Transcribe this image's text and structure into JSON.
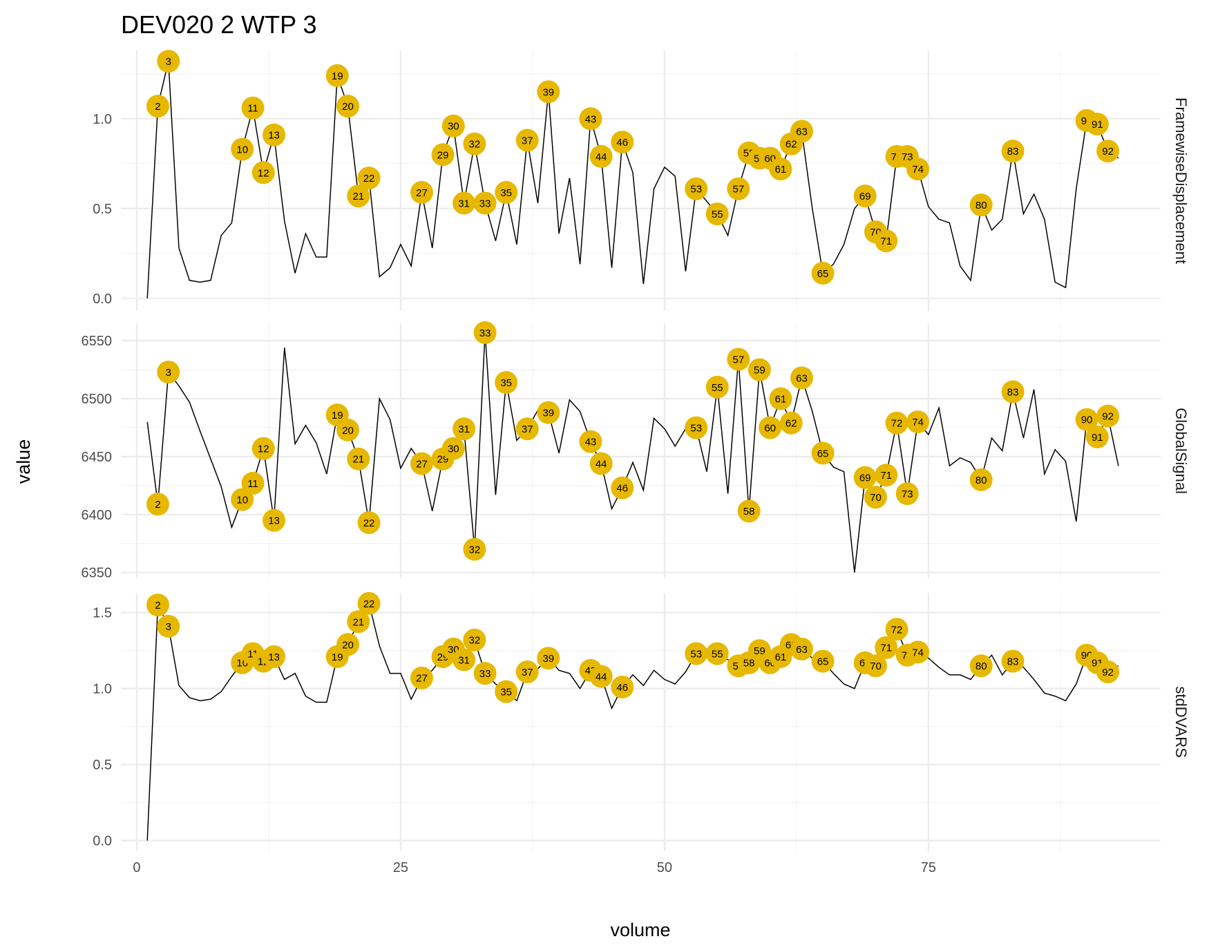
{
  "chart_data": {
    "type": "line",
    "title": "DEV020  2  WTP  3",
    "xlabel": "volume",
    "ylabel": "value",
    "xlim": [
      -1.5,
      97
    ],
    "x_ticks": [
      0,
      25,
      50,
      75
    ],
    "grid": true,
    "highlight_color": "#E7B800",
    "line_color": "#000000",
    "panels": [
      {
        "name": "FramewiseDisplacement",
        "ylim": [
          -0.07,
          1.38
        ],
        "y_ticks": [
          0.0,
          0.5,
          1.0
        ],
        "y_tick_labels": [
          "0.0",
          "0.5",
          "1.0"
        ],
        "x": [
          1,
          2,
          3,
          4,
          5,
          6,
          7,
          8,
          9,
          10,
          11,
          12,
          13,
          14,
          15,
          16,
          17,
          18,
          19,
          20,
          21,
          22,
          23,
          24,
          25,
          26,
          27,
          28,
          29,
          30,
          31,
          32,
          33,
          34,
          35,
          36,
          37,
          38,
          39,
          40,
          41,
          42,
          43,
          44,
          45,
          46,
          47,
          48,
          49,
          50,
          51,
          52,
          53,
          54,
          55,
          56,
          57,
          58,
          59,
          60,
          61,
          62,
          63,
          64,
          65,
          66,
          67,
          68,
          69,
          70,
          71,
          72,
          73,
          74,
          75,
          76,
          77,
          78,
          79,
          80,
          81,
          82,
          83,
          84,
          85,
          86,
          87,
          88,
          89,
          90,
          91,
          92,
          93
        ],
        "values": [
          0.0,
          1.07,
          1.32,
          0.28,
          0.1,
          0.09,
          0.1,
          0.35,
          0.42,
          0.83,
          1.06,
          0.7,
          0.91,
          0.43,
          0.14,
          0.36,
          0.23,
          0.23,
          1.24,
          1.07,
          0.57,
          0.67,
          0.12,
          0.17,
          0.3,
          0.18,
          0.59,
          0.28,
          0.8,
          0.96,
          0.53,
          0.86,
          0.53,
          0.32,
          0.59,
          0.3,
          0.88,
          0.53,
          1.15,
          0.36,
          0.67,
          0.19,
          1.0,
          0.79,
          0.17,
          0.87,
          0.7,
          0.08,
          0.61,
          0.73,
          0.68,
          0.15,
          0.61,
          0.54,
          0.47,
          0.35,
          0.61,
          0.81,
          0.78,
          0.78,
          0.72,
          0.86,
          0.93,
          0.5,
          0.14,
          0.19,
          0.3,
          0.5,
          0.57,
          0.37,
          0.32,
          0.79,
          0.79,
          0.72,
          0.51,
          0.44,
          0.42,
          0.18,
          0.1,
          0.52,
          0.38,
          0.44,
          0.82,
          0.47,
          0.58,
          0.44,
          0.09,
          0.06,
          0.61,
          0.99,
          0.97,
          0.82,
          0.78
        ],
        "highlight_labels": [
          2,
          3,
          10,
          11,
          12,
          13,
          19,
          20,
          21,
          22,
          27,
          29,
          30,
          31,
          32,
          33,
          35,
          37,
          39,
          43,
          44,
          46,
          53,
          55,
          57,
          58,
          59,
          60,
          61,
          62,
          63,
          65,
          69,
          70,
          71,
          72,
          73,
          74,
          80,
          83,
          90,
          91,
          92
        ]
      },
      {
        "name": "GlobalSignal",
        "ylim": [
          6345,
          6565
        ],
        "y_ticks": [
          6350,
          6400,
          6450,
          6500,
          6550
        ],
        "y_tick_labels": [
          "6350",
          "6400",
          "6450",
          "6500",
          "6550"
        ],
        "x": [
          1,
          2,
          3,
          4,
          5,
          6,
          7,
          8,
          9,
          10,
          11,
          12,
          13,
          14,
          15,
          16,
          17,
          18,
          19,
          20,
          21,
          22,
          23,
          24,
          25,
          26,
          27,
          28,
          29,
          30,
          31,
          32,
          33,
          34,
          35,
          36,
          37,
          38,
          39,
          40,
          41,
          42,
          43,
          44,
          45,
          46,
          47,
          48,
          49,
          50,
          51,
          52,
          53,
          54,
          55,
          56,
          57,
          58,
          59,
          60,
          61,
          62,
          63,
          64,
          65,
          66,
          67,
          68,
          69,
          70,
          71,
          72,
          73,
          74,
          75,
          76,
          77,
          78,
          79,
          80,
          81,
          82,
          83,
          84,
          85,
          86,
          87,
          88,
          89,
          90,
          91,
          92,
          93
        ],
        "values": [
          6480,
          6409,
          6523,
          6511,
          6497,
          6472,
          6448,
          6424,
          6389,
          6413,
          6427,
          6457,
          6395,
          6544,
          6461,
          6477,
          6462,
          6435,
          6486,
          6473,
          6448,
          6393,
          6500,
          6482,
          6440,
          6457,
          6444,
          6403,
          6448,
          6457,
          6474,
          6370,
          6557,
          6417,
          6514,
          6464,
          6474,
          6490,
          6488,
          6453,
          6499,
          6489,
          6463,
          6444,
          6405,
          6423,
          6445,
          6421,
          6483,
          6474,
          6459,
          6474,
          6475,
          6437,
          6510,
          6418,
          6534,
          6403,
          6525,
          6475,
          6500,
          6479,
          6518,
          6489,
          6453,
          6441,
          6437,
          6350,
          6432,
          6415,
          6434,
          6479,
          6418,
          6480,
          6469,
          6492,
          6442,
          6449,
          6445,
          6430,
          6466,
          6455,
          6506,
          6466,
          6508,
          6435,
          6456,
          6446,
          6394,
          6482,
          6467,
          6485,
          6442
        ],
        "highlight_labels": [
          2,
          3,
          10,
          11,
          12,
          13,
          19,
          20,
          21,
          22,
          27,
          29,
          30,
          31,
          32,
          33,
          35,
          37,
          39,
          43,
          44,
          46,
          53,
          55,
          57,
          58,
          59,
          60,
          61,
          62,
          63,
          65,
          69,
          70,
          71,
          72,
          73,
          74,
          80,
          83,
          90,
          91,
          92
        ]
      },
      {
        "name": "stdDVARS",
        "ylim": [
          -0.07,
          1.63
        ],
        "y_ticks": [
          0.0,
          0.5,
          1.0,
          1.5
        ],
        "y_tick_labels": [
          "0.0",
          "0.5",
          "1.0",
          "1.5"
        ],
        "x": [
          1,
          2,
          3,
          4,
          5,
          6,
          7,
          8,
          9,
          10,
          11,
          12,
          13,
          14,
          15,
          16,
          17,
          18,
          19,
          20,
          21,
          22,
          23,
          24,
          25,
          26,
          27,
          28,
          29,
          30,
          31,
          32,
          33,
          34,
          35,
          36,
          37,
          38,
          39,
          40,
          41,
          42,
          43,
          44,
          45,
          46,
          47,
          48,
          49,
          50,
          51,
          52,
          53,
          54,
          55,
          56,
          57,
          58,
          59,
          60,
          61,
          62,
          63,
          64,
          65,
          66,
          67,
          68,
          69,
          70,
          71,
          72,
          73,
          74,
          75,
          76,
          77,
          78,
          79,
          80,
          81,
          82,
          83,
          84,
          85,
          86,
          87,
          88,
          89,
          90,
          91,
          92,
          93
        ],
        "values": [
          0.0,
          1.55,
          1.41,
          1.02,
          0.94,
          0.92,
          0.93,
          0.98,
          1.08,
          1.17,
          1.23,
          1.18,
          1.21,
          1.06,
          1.1,
          0.95,
          0.91,
          0.91,
          1.21,
          1.29,
          1.44,
          1.56,
          1.28,
          1.1,
          1.1,
          0.93,
          1.07,
          1.12,
          1.21,
          1.26,
          1.19,
          1.32,
          1.1,
          1.03,
          0.98,
          0.92,
          1.11,
          1.13,
          1.2,
          1.12,
          1.1,
          1.0,
          1.12,
          1.08,
          0.87,
          1.01,
          1.09,
          1.02,
          1.12,
          1.06,
          1.03,
          1.11,
          1.23,
          1.26,
          1.23,
          1.19,
          1.15,
          1.17,
          1.25,
          1.17,
          1.21,
          1.29,
          1.26,
          1.2,
          1.18,
          1.1,
          1.03,
          1.0,
          1.17,
          1.15,
          1.27,
          1.39,
          1.22,
          1.24,
          1.2,
          1.14,
          1.09,
          1.09,
          1.06,
          1.15,
          1.22,
          1.09,
          1.18,
          1.14,
          1.06,
          0.97,
          0.95,
          0.92,
          1.03,
          1.22,
          1.17,
          1.11,
          1.15
        ],
        "highlight_labels": [
          2,
          3,
          10,
          11,
          12,
          13,
          19,
          20,
          21,
          22,
          27,
          29,
          30,
          31,
          32,
          33,
          35,
          37,
          39,
          43,
          44,
          46,
          53,
          55,
          57,
          58,
          59,
          60,
          61,
          62,
          63,
          65,
          69,
          70,
          71,
          72,
          73,
          74,
          80,
          83,
          90,
          91,
          92
        ]
      }
    ]
  }
}
